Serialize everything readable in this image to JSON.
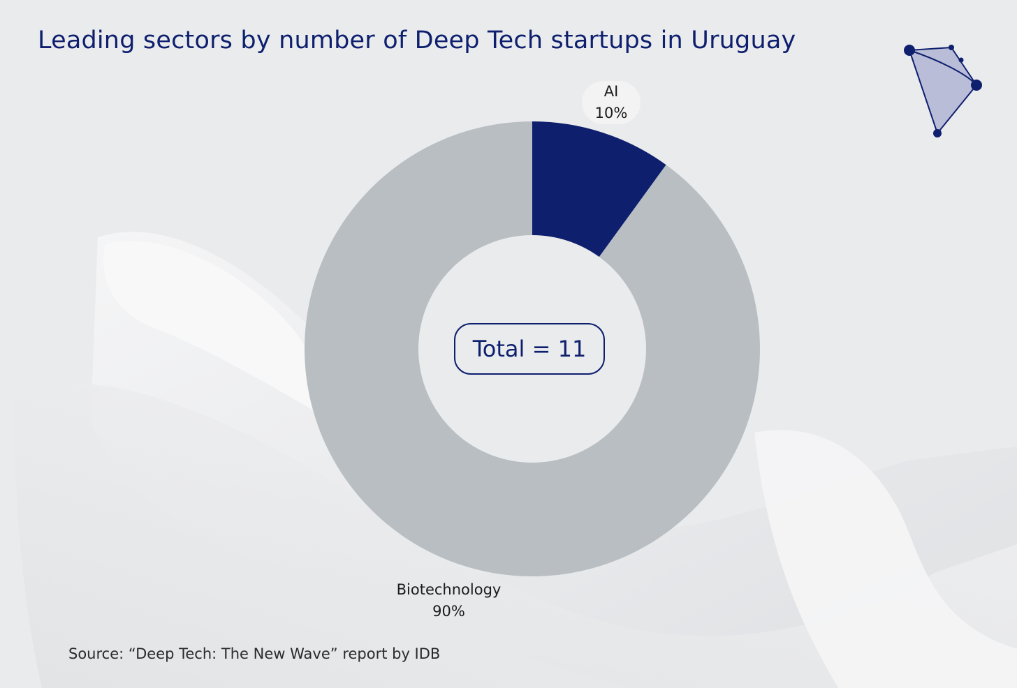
{
  "chart_data": {
    "type": "pie",
    "title": "Leading sectors by number of Deep Tech startups in Uruguay",
    "categories": [
      "AI",
      "Biotechnology"
    ],
    "values": [
      10,
      90
    ],
    "value_labels": [
      "10%",
      "90%"
    ],
    "center_label": "Total = 11",
    "source": "Source: “Deep Tech: The New Wave” report by IDB"
  },
  "colors": {
    "ai": "#0e1f6e",
    "biotechnology": "#b9bec3",
    "background": "#eaebed",
    "accent": "#0e1f6e"
  },
  "logo": {
    "icon": "constellation-logo-icon"
  }
}
